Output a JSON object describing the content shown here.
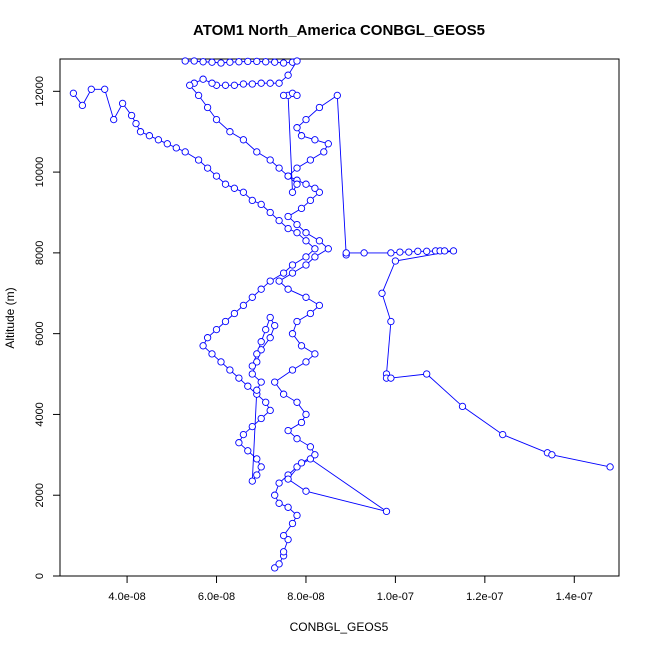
{
  "chart_data": {
    "type": "line",
    "title": "ATOM1 North_America CONBGL_GEOS5",
    "xlabel": "CONBGL_GEOS5",
    "ylabel": "Altitude (m)",
    "xlim": [
      2.5e-08,
      1.5e-07
    ],
    "ylim": [
      0,
      12800
    ],
    "x_ticks": [
      4e-08,
      6e-08,
      8e-08,
      1e-07,
      1.2e-07,
      1.4e-07
    ],
    "x_tick_labels": [
      "4.0e-08",
      "6.0e-08",
      "8.0e-08",
      "1.0e-07",
      "1.2e-07",
      "1.4e-07"
    ],
    "y_ticks": [
      0,
      2000,
      4000,
      6000,
      8000,
      10000,
      12000
    ],
    "y_tick_labels": [
      "0",
      "2000",
      "4000",
      "6000",
      "8000",
      "10000",
      "12000"
    ],
    "series_color": "#0000ff",
    "marker": "open-circle",
    "grid": false,
    "legend": "none",
    "series": [
      {
        "x": [
          7.3e-08,
          7.4e-08,
          7.5e-08,
          7.5e-08,
          7.6e-08,
          7.5e-08,
          7.7e-08,
          7.8e-08,
          7.6e-08,
          7.4e-08,
          7.3e-08,
          7.4e-08,
          7.6e-08,
          7.8e-08,
          8.1e-08,
          9.8e-08,
          8e-08,
          7.6e-08,
          7.9e-08,
          8.2e-08,
          8.1e-08,
          7.8e-08,
          7.6e-08,
          7.9e-08,
          8e-08,
          7.8e-08,
          7.5e-08,
          7.3e-08,
          7.7e-08,
          8e-08,
          8.2e-08,
          7.9e-08,
          7.7e-08,
          7.8e-08,
          8.1e-08,
          8.3e-08,
          8e-08,
          7.6e-08,
          7.4e-08,
          7.7e-08,
          8e-08,
          8.2e-08,
          8.5e-08,
          8.3e-08,
          8e-08,
          7.8e-08,
          7.6e-08,
          7.9e-08,
          8.1e-08,
          8.3e-08,
          8.2e-08,
          8e-08,
          7.8e-08,
          7.6e-08,
          7.8e-08,
          8.1e-08,
          8.4e-08,
          8.5e-08,
          8.2e-08,
          7.9e-08,
          7.8e-08,
          8e-08,
          8.3e-08,
          8.7e-08,
          8.9e-08,
          8.9e-08,
          9.3e-08,
          9.9e-08,
          1.01e-07,
          1.03e-07,
          1.05e-07,
          1.07e-07,
          1.09e-07,
          1.1e-07,
          1.11e-07,
          1.13e-07,
          1e-07,
          9.7e-08,
          9.9e-08,
          9.8e-08,
          9.8e-08,
          9.9e-08,
          1.07e-07,
          1.15e-07,
          1.24e-07,
          1.34e-07,
          1.35e-07,
          1.48e-07
        ],
        "y": [
          200,
          300,
          500,
          600,
          900,
          1000,
          1300,
          1500,
          1700,
          1800,
          2000,
          2300,
          2500,
          2700,
          2900,
          1600,
          2100,
          2400,
          2800,
          3000,
          3200,
          3400,
          3600,
          3800,
          4000,
          4300,
          4500,
          4800,
          5100,
          5300,
          5500,
          5700,
          6000,
          6300,
          6500,
          6700,
          6900,
          7100,
          7300,
          7500,
          7700,
          7900,
          8100,
          8300,
          8500,
          8700,
          8900,
          9100,
          9300,
          9500,
          9600,
          9700,
          9800,
          9900,
          10100,
          10300,
          10500,
          10700,
          10800,
          10900,
          11100,
          11300,
          11600,
          11900,
          7950,
          8000,
          8000,
          8000,
          8020,
          8020,
          8040,
          8040,
          8050,
          8050,
          8050,
          8050,
          7800,
          7000,
          6300,
          5000,
          4900,
          4900,
          5000,
          4200,
          3500,
          3050,
          3000,
          2700
        ]
      },
      {
        "x": [
          2.8e-08,
          3e-08,
          3.2e-08,
          3.5e-08,
          3.7e-08,
          3.9e-08,
          4.1e-08,
          4.2e-08,
          4.3e-08,
          4.5e-08,
          4.7e-08,
          4.9e-08,
          5.1e-08,
          5.3e-08,
          5.6e-08,
          5.8e-08,
          6e-08,
          6.2e-08,
          6.4e-08,
          6.6e-08,
          6.8e-08,
          7e-08,
          7.2e-08,
          7.4e-08,
          7.6e-08,
          7.8e-08,
          8e-08,
          8.2e-08,
          8e-08,
          7.7e-08,
          7.5e-08,
          7.2e-08,
          7e-08,
          6.8e-08,
          6.6e-08,
          6.4e-08,
          6.2e-08,
          6e-08,
          5.8e-08,
          5.7e-08,
          5.9e-08,
          6.1e-08,
          6.3e-08,
          6.5e-08,
          6.7e-08,
          6.9e-08,
          7.1e-08,
          7.2e-08,
          7e-08,
          6.8e-08,
          6.6e-08,
          6.5e-08,
          6.7e-08,
          6.9e-08,
          7e-08,
          6.9e-08,
          6.8e-08,
          6.9e-08,
          7e-08,
          6.8e-08,
          6.9e-08,
          7e-08,
          7.2e-08,
          7.3e-08,
          7.2e-08,
          7.1e-08,
          7e-08,
          6.9e-08,
          6.8e-08
        ],
        "y": [
          11950,
          11650,
          12050,
          12050,
          11300,
          11700,
          11400,
          11200,
          11000,
          10900,
          10800,
          10700,
          10600,
          10500,
          10300,
          10100,
          9900,
          9700,
          9600,
          9500,
          9300,
          9200,
          9000,
          8800,
          8600,
          8500,
          8300,
          8100,
          7900,
          7700,
          7500,
          7300,
          7100,
          6900,
          6700,
          6500,
          6300,
          6100,
          5900,
          5700,
          5500,
          5300,
          5100,
          4900,
          4700,
          4500,
          4300,
          4100,
          3900,
          3700,
          3500,
          3300,
          3100,
          2900,
          2700,
          2500,
          2350,
          4600,
          4800,
          5000,
          5300,
          5600,
          5900,
          6200,
          6400,
          6100,
          5800,
          5500,
          5200
        ]
      },
      {
        "x": [
          5.3e-08,
          5.5e-08,
          5.7e-08,
          5.9e-08,
          6.1e-08,
          6.3e-08,
          6.5e-08,
          6.7e-08,
          6.9e-08,
          7.1e-08,
          7.3e-08,
          7.5e-08,
          7.7e-08,
          7.8e-08,
          7.6e-08,
          7.4e-08,
          7.2e-08,
          7e-08,
          6.8e-08,
          6.6e-08,
          6.4e-08,
          6.2e-08,
          6e-08,
          5.9e-08,
          5.7e-08,
          5.5e-08,
          5.4e-08,
          5.6e-08,
          5.8e-08,
          6e-08,
          6.3e-08,
          6.6e-08,
          6.9e-08,
          7.2e-08,
          7.4e-08,
          7.6e-08,
          7.8e-08,
          7.7e-08,
          7.6e-08,
          7.5e-08,
          7.7e-08,
          7.8e-08
        ],
        "y": [
          12750,
          12750,
          12730,
          12720,
          12700,
          12720,
          12730,
          12740,
          12740,
          12730,
          12720,
          12700,
          12720,
          12750,
          12400,
          12200,
          12200,
          12200,
          12180,
          12180,
          12150,
          12150,
          12150,
          12200,
          12300,
          12200,
          12150,
          11900,
          11600,
          11300,
          11000,
          10800,
          10500,
          10300,
          10100,
          9900,
          9700,
          9500,
          11900,
          11900,
          11950,
          11900
        ]
      }
    ]
  }
}
